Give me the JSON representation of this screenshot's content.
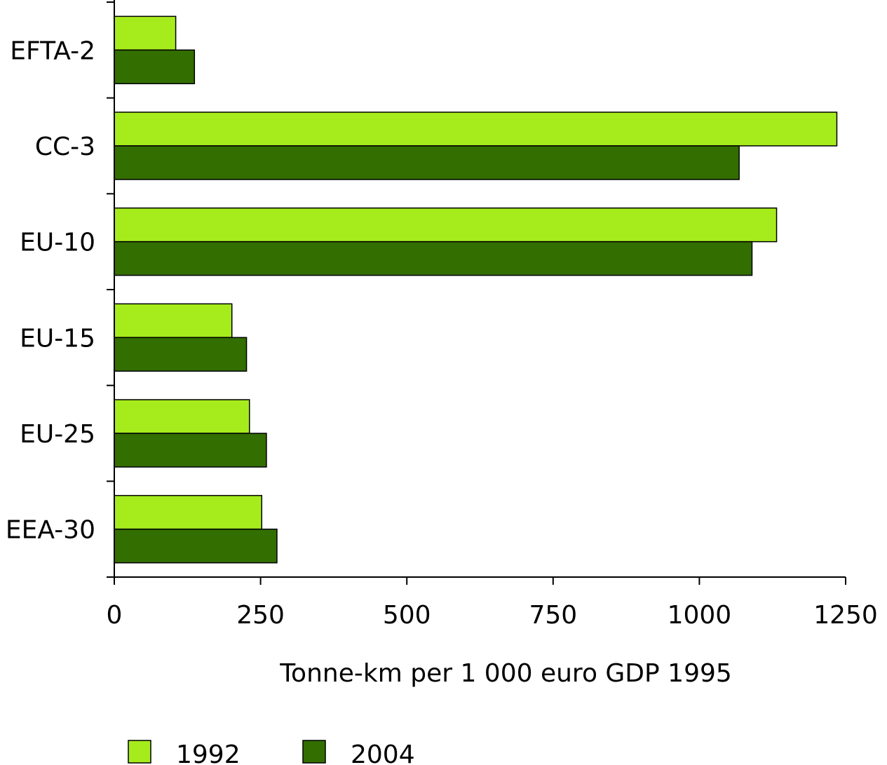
{
  "chart_data": {
    "type": "bar",
    "orientation": "horizontal",
    "title": "",
    "categories": [
      "EFTA-2",
      "CC-3",
      "EU-10",
      "EU-15",
      "EU-25",
      "EEA-30"
    ],
    "series": [
      {
        "name": "1992",
        "color": "#a6ec1c",
        "values": [
          105,
          1235,
          1132,
          201,
          231,
          252
        ]
      },
      {
        "name": "2004",
        "color": "#336e00",
        "values": [
          137,
          1068,
          1090,
          226,
          260,
          278
        ]
      }
    ],
    "xlabel": "Tonne-km per 1 000 euro GDP 1995",
    "ylabel": "",
    "xlim": [
      0,
      1250
    ],
    "xticks": [
      0,
      250,
      500,
      750,
      1000,
      1250
    ],
    "xtick_labels": [
      "0",
      "250",
      "500",
      "750",
      "1000",
      "1250"
    ],
    "grid": false,
    "legend_position": "bottom"
  }
}
